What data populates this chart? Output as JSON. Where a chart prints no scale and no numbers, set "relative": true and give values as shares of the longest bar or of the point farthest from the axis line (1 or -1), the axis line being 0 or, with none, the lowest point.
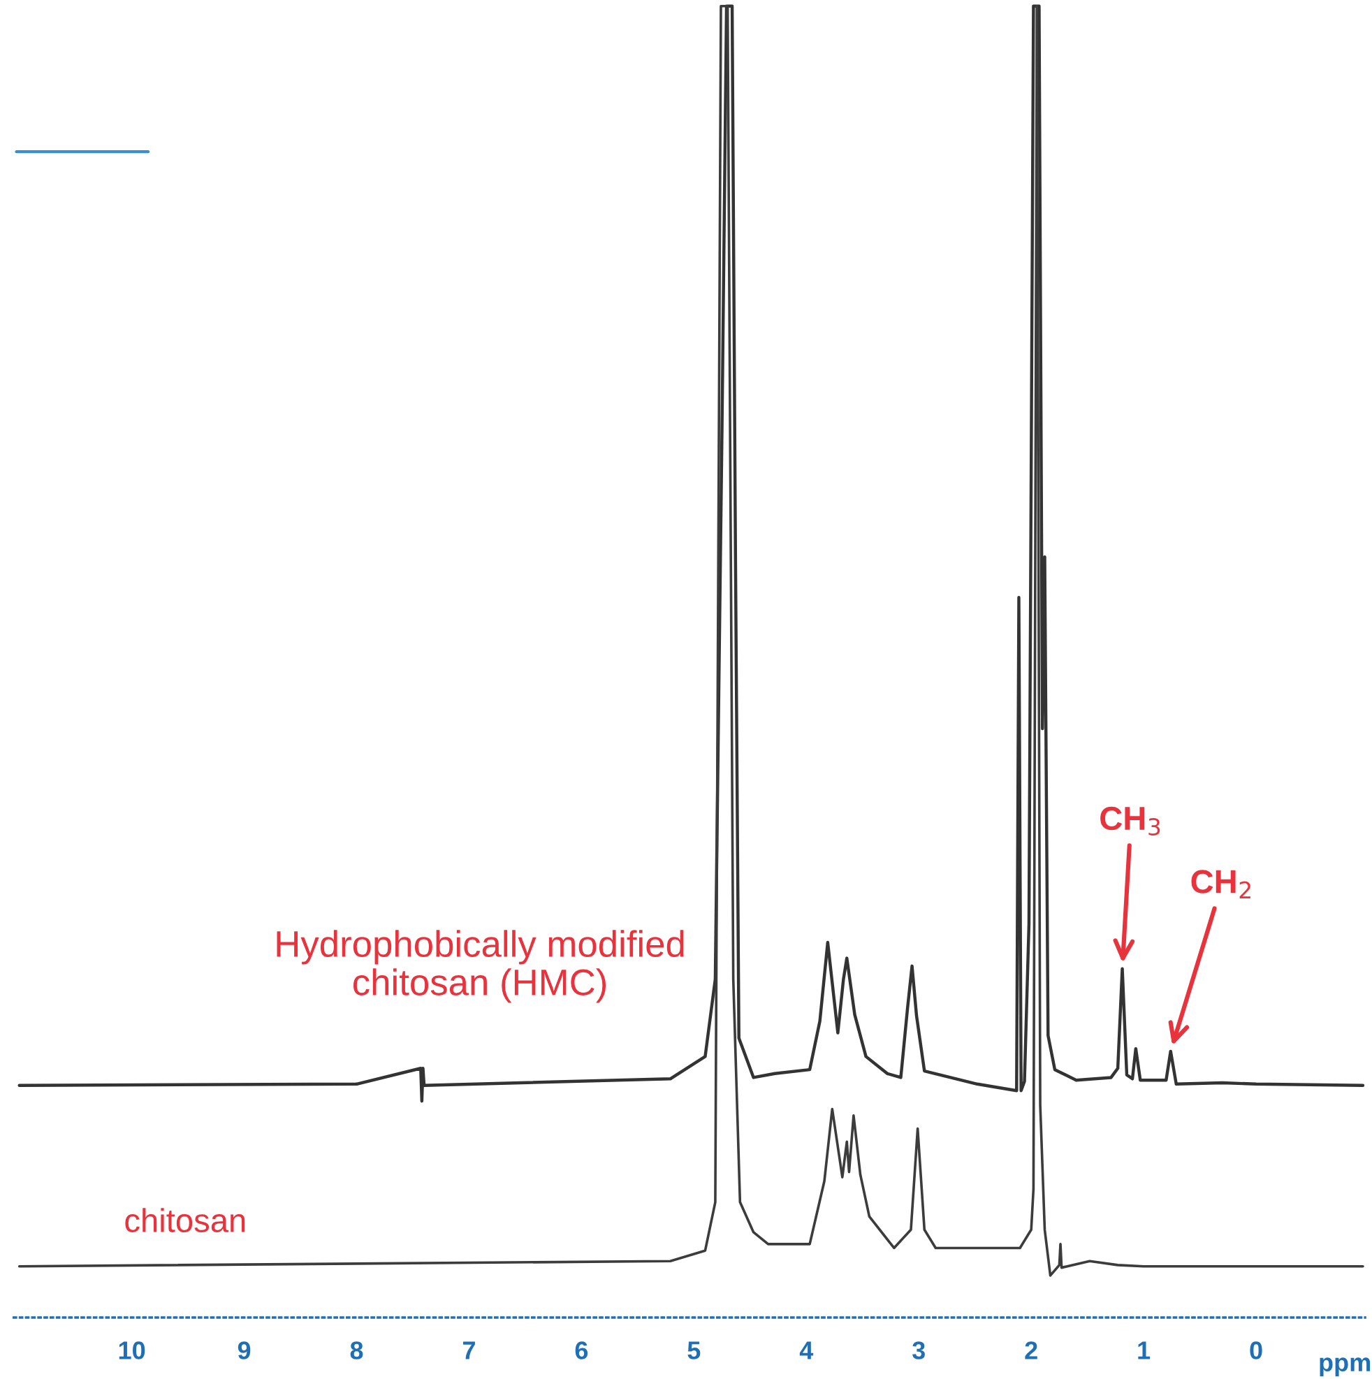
{
  "chart_data": {
    "type": "line",
    "relative": true,
    "xlabel": "ppm",
    "xlim": [
      11.05,
      -0.97
    ],
    "xticks": [
      10,
      9,
      8,
      7,
      6,
      5,
      4,
      3,
      2,
      1,
      0
    ],
    "grid": false,
    "legend": false,
    "marker": "none",
    "line_style": "solid",
    "series": [
      {
        "name": "Hydrophobically modified\nchitosan (HMC)",
        "color": "#333333",
        "x": [
          11.0,
          8.0,
          7.43,
          7.42,
          7.41,
          7.4,
          5.21,
          4.9,
          4.81,
          4.75,
          4.71,
          4.66,
          4.63,
          4.6,
          4.47,
          4.28,
          3.97,
          3.88,
          3.81,
          3.72,
          3.67,
          3.64,
          3.57,
          3.47,
          3.28,
          3.16,
          3.1,
          3.06,
          3.02,
          2.95,
          2.48,
          2.13,
          2.11,
          2.09,
          2.06,
          2.02,
          1.98,
          1.93,
          1.9,
          1.88,
          1.85,
          1.79,
          1.6,
          1.29,
          1.23,
          1.19,
          1.15,
          1.1,
          1.07,
          1.03,
          0.8,
          0.76,
          0.71,
          0.3,
          0.0,
          -0.95
        ],
        "values": [
          0.177,
          0.178,
          0.19,
          0.165,
          0.19,
          0.177,
          0.182,
          0.199,
          0.258,
          0.68,
          1.0,
          1.0,
          0.576,
          0.213,
          0.183,
          0.186,
          0.189,
          0.226,
          0.286,
          0.217,
          0.258,
          0.274,
          0.231,
          0.199,
          0.186,
          0.183,
          0.236,
          0.268,
          0.23,
          0.188,
          0.178,
          0.173,
          0.549,
          0.173,
          0.18,
          0.3,
          1.0,
          1.0,
          0.449,
          0.58,
          0.215,
          0.189,
          0.181,
          0.183,
          0.19,
          0.266,
          0.185,
          0.182,
          0.205,
          0.181,
          0.181,
          0.203,
          0.178,
          0.179,
          0.178,
          0.177
        ]
      },
      {
        "name": "chitosan",
        "color": "#3c3c3c",
        "x": [
          11.0,
          5.21,
          4.9,
          4.81,
          4.76,
          4.7,
          4.65,
          4.59,
          4.47,
          4.34,
          3.97,
          3.84,
          3.77,
          3.68,
          3.64,
          3.62,
          3.58,
          3.52,
          3.44,
          3.22,
          3.07,
          3.01,
          2.95,
          2.85,
          2.1,
          2.0,
          1.98,
          1.95,
          1.92,
          1.88,
          1.83,
          1.75,
          1.74,
          1.73,
          1.48,
          1.23,
          1.0,
          -0.95
        ],
        "values": [
          0.039,
          0.043,
          0.051,
          0.088,
          1.0,
          1.0,
          0.258,
          0.088,
          0.065,
          0.056,
          0.056,
          0.104,
          0.159,
          0.107,
          0.134,
          0.111,
          0.154,
          0.109,
          0.077,
          0.053,
          0.067,
          0.144,
          0.067,
          0.053,
          0.053,
          0.067,
          0.098,
          1.0,
          0.162,
          0.067,
          0.032,
          0.04,
          0.056,
          0.038,
          0.043,
          0.04,
          0.039,
          0.039
        ]
      }
    ],
    "annotations": [
      {
        "text": "CH$_{3}$",
        "x": 1.19,
        "y": 0.266
      },
      {
        "text": "CH$_{2}$",
        "x": 0.76,
        "y": 0.203
      }
    ]
  }
}
